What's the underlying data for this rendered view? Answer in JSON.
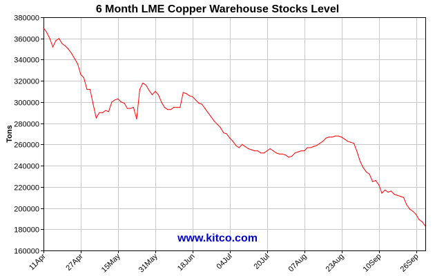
{
  "chart_data": {
    "type": "line",
    "title": "6 Month LME Copper Warehouse Stocks Level",
    "xlabel": "",
    "ylabel": "Tons",
    "ylim": [
      160000,
      380000
    ],
    "yticks": [
      160000,
      180000,
      200000,
      220000,
      240000,
      260000,
      280000,
      300000,
      320000,
      340000,
      360000,
      380000
    ],
    "yticks_labels": [
      "160000",
      "180000",
      "200000",
      "220000",
      "240000",
      "260000",
      "280000",
      "300000",
      "320000",
      "340000",
      "360000",
      "380000"
    ],
    "xticks": [
      {
        "label": "11Apr",
        "i": 0
      },
      {
        "label": "27Apr",
        "i": 12
      },
      {
        "label": "15May",
        "i": 24
      },
      {
        "label": "31May",
        "i": 36
      },
      {
        "label": "18Jun",
        "i": 48
      },
      {
        "label": "04Jul",
        "i": 60
      },
      {
        "label": "20Jul",
        "i": 72
      },
      {
        "label": "07Aug",
        "i": 84
      },
      {
        "label": "23Aug",
        "i": 96
      },
      {
        "label": "10Sep",
        "i": 108
      },
      {
        "label": "26Sep",
        "i": 120
      }
    ],
    "grid": true,
    "line_color": "#ff0000",
    "grid_color": "#c8c8c8",
    "series": [
      {
        "values": [
          370000,
          366000,
          360000,
          352000,
          358000,
          360000,
          355000,
          353000,
          350000,
          346000,
          341000,
          336000,
          326000,
          323000,
          312000,
          312000,
          298000,
          285000,
          290000,
          290000,
          292000,
          291000,
          300000,
          302000,
          303000,
          300000,
          299000,
          294000,
          294000,
          295000,
          284000,
          312000,
          318000,
          316000,
          311000,
          307000,
          310000,
          307000,
          300000,
          295000,
          293000,
          293000,
          295000,
          295000,
          295000,
          309000,
          308000,
          306000,
          305000,
          302000,
          299000,
          298000,
          294000,
          290000,
          286000,
          282000,
          279000,
          276000,
          271000,
          270000,
          266000,
          263000,
          259000,
          257000,
          260000,
          258000,
          256000,
          255000,
          254000,
          254000,
          252000,
          252000,
          254000,
          256000,
          254000,
          252000,
          251000,
          251000,
          250000,
          248000,
          249000,
          252000,
          253000,
          254000,
          254000,
          257000,
          257000,
          258000,
          259000,
          261000,
          263000,
          266000,
          267000,
          267000,
          268000,
          268000,
          267000,
          265000,
          263000,
          262000,
          261000,
          253000,
          244000,
          238000,
          234000,
          232000,
          225000,
          226000,
          222000,
          214000,
          217000,
          215000,
          216000,
          213000,
          212000,
          211000,
          210000,
          203000,
          199000,
          197000,
          194000,
          189000,
          187000,
          183000
        ]
      }
    ],
    "watermark": "www.kitco.com"
  }
}
